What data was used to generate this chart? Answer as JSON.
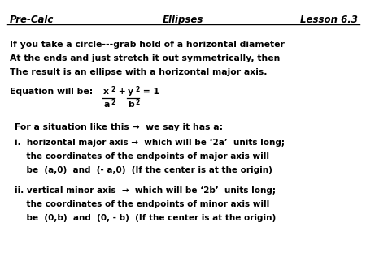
{
  "bg_color": "#ffffff",
  "title_left": "Pre-Calc",
  "title_center": "Ellipses",
  "title_right": "Lesson 6.3",
  "line1": "If you take a circle---grab hold of a horizontal diameter",
  "line2": "At the ends and just stretch it out symmetrically, then",
  "line3": "The result is an ellipse with a horizontal major axis.",
  "for_line": "For a situation like this →  we say it has a:",
  "i_line1": "i.  horizontal major axis →  which will be ‘2a’  units long;",
  "i_line2": "    the coordinates of the endpoints of major axis will",
  "i_line3": "    be  (a,0)  and  (- a,0)  (If the center is at the origin)",
  "ii_line1": "ii. vertical minor axis  →  which will be ‘2b’  units long;",
  "ii_line2": "    the coordinates of the endpoints of minor axis will",
  "ii_line3": "    be  (0,b)  and  (0, - b)  (If the center is at the origin)",
  "fs_title": 8.5,
  "fs_body": 7.8,
  "fs_small": 7.5,
  "fs_sup": 5.5
}
